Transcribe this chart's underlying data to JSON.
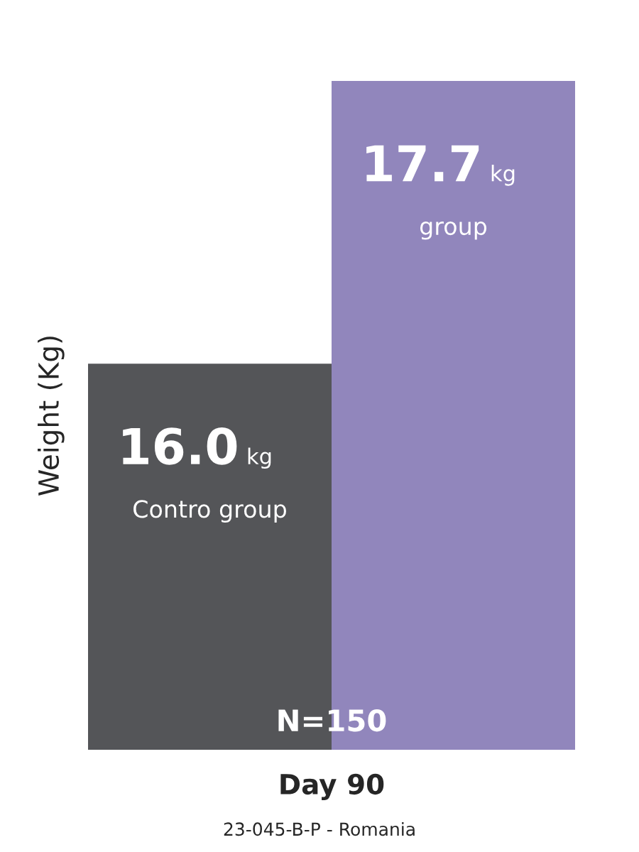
{
  "chart_data": {
    "type": "bar",
    "ylim": [
      13.68,
      17.7
    ],
    "tick_labels": false,
    "xlabel": "Day 90",
    "ylabel": "Weight (Kg)",
    "categories": [
      "Contro group",
      "group"
    ],
    "values": [
      16.0,
      17.7
    ],
    "colors": [
      "#545558",
      "#9186bc"
    ],
    "value_labels": [
      "16.0 kg",
      "17.7 kg"
    ],
    "annotations": [
      "N=150",
      "23-045-B-P - Romania"
    ],
    "legend": false
  }
}
